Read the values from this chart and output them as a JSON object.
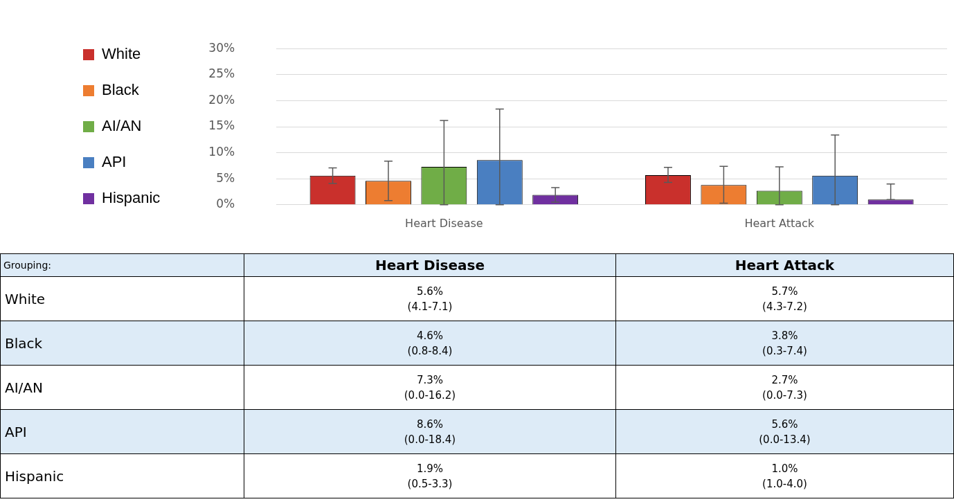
{
  "chart_data": {
    "type": "bar",
    "categories": [
      "Heart Disease",
      "Heart Attack"
    ],
    "series": [
      {
        "name": "White",
        "color": "#c9302c",
        "values": [
          5.6,
          5.7
        ],
        "errors": [
          [
            4.1,
            7.1
          ],
          [
            4.3,
            7.2
          ]
        ],
        "value_labels": [
          "5.6%\n(4.1-7.1)",
          "5.7%\n(4.3-7.2)"
        ]
      },
      {
        "name": "Black",
        "color": "#ed7d31",
        "values": [
          4.6,
          3.8
        ],
        "errors": [
          [
            0.8,
            8.4
          ],
          [
            0.3,
            7.4
          ]
        ],
        "value_labels": [
          "4.6%\n(0.8-8.4)",
          "3.8%\n(0.3-7.4)"
        ]
      },
      {
        "name": "AI/AN",
        "color": "#70ad47",
        "values": [
          7.3,
          2.7
        ],
        "errors": [
          [
            0.0,
            16.2
          ],
          [
            0.0,
            7.3
          ]
        ],
        "value_labels": [
          "7.3%\n(0.0-16.2)",
          "2.7%\n(0.0-7.3)"
        ]
      },
      {
        "name": "API",
        "color": "#4a7fc1",
        "values": [
          8.6,
          5.6
        ],
        "errors": [
          [
            0.0,
            18.4
          ],
          [
            0.0,
            13.4
          ]
        ],
        "value_labels": [
          "8.6%\n(0.0-18.4)",
          "5.6%\n(0.0-13.4)"
        ]
      },
      {
        "name": "Hispanic",
        "color": "#7030a0",
        "values": [
          1.9,
          1.0
        ],
        "errors": [
          [
            0.5,
            3.3
          ],
          [
            1.0,
            4.0
          ]
        ],
        "value_labels": [
          "1.9%\n(0.5-3.3)",
          "1.0%\n(1.0-4.0)"
        ]
      }
    ],
    "ylim": [
      0,
      30
    ],
    "yticks": [
      {
        "value": 0,
        "label": "0%"
      },
      {
        "value": 5,
        "label": "5%"
      },
      {
        "value": 10,
        "label": "10%"
      },
      {
        "value": 15,
        "label": "15%"
      },
      {
        "value": 20,
        "label": "20%"
      },
      {
        "value": 25,
        "label": "25%"
      },
      {
        "value": 30,
        "label": "30%"
      }
    ],
    "grid": "y",
    "legend": "left",
    "annotations": [
      "Grouping:"
    ]
  }
}
